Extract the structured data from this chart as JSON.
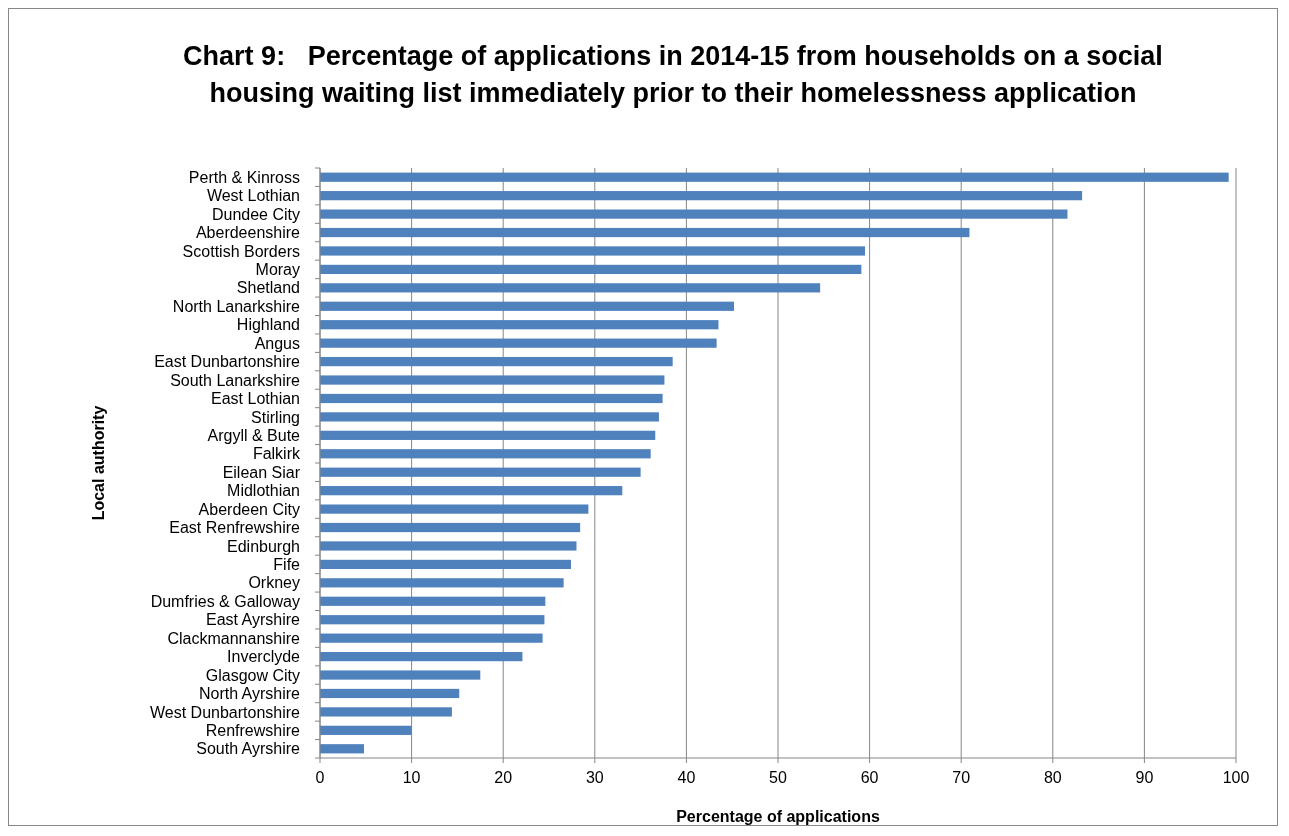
{
  "chart_data": {
    "type": "bar",
    "orientation": "horizontal",
    "title": "Chart 9:   Percentage of applications in 2014-15 from households on a social housing waiting list immediately prior to their homelessness application",
    "xlabel": "Percentage of applications",
    "ylabel": "Local authority",
    "categories": [
      "Perth & Kinross",
      "West Lothian",
      "Dundee City",
      "Aberdeenshire",
      "Scottish Borders",
      "Moray",
      "Shetland",
      "North Lanarkshire",
      "Highland",
      "Angus",
      "East Dunbartonshire",
      "South Lanarkshire",
      "East Lothian",
      "Stirling",
      "Argyll & Bute",
      "Falkirk",
      "Eilean Siar",
      "Midlothian",
      "Aberdeen City",
      "East Renfrewshire",
      "Edinburgh",
      "Fife",
      "Orkney",
      "Dumfries & Galloway",
      "East Ayrshire",
      "Clackmannanshire",
      "Inverclyde",
      "Glasgow City",
      "North Ayrshire",
      "West Dunbartonshire",
      "Renfrewshire",
      "South Ayrshire"
    ],
    "values": [
      99.2,
      83.2,
      81.6,
      70.9,
      59.5,
      59.1,
      54.6,
      45.2,
      43.5,
      43.3,
      38.5,
      37.6,
      37.4,
      37.0,
      36.6,
      36.1,
      35.0,
      33.0,
      29.3,
      28.4,
      28.0,
      27.4,
      26.6,
      24.6,
      24.5,
      24.3,
      22.1,
      17.5,
      15.2,
      14.4,
      10.0,
      4.8
    ],
    "color": "#4f81bd",
    "xlim": [
      0,
      100
    ],
    "xticks": [
      0,
      10,
      20,
      30,
      40,
      50,
      60,
      70,
      80,
      90,
      100
    ],
    "grid": "x"
  }
}
